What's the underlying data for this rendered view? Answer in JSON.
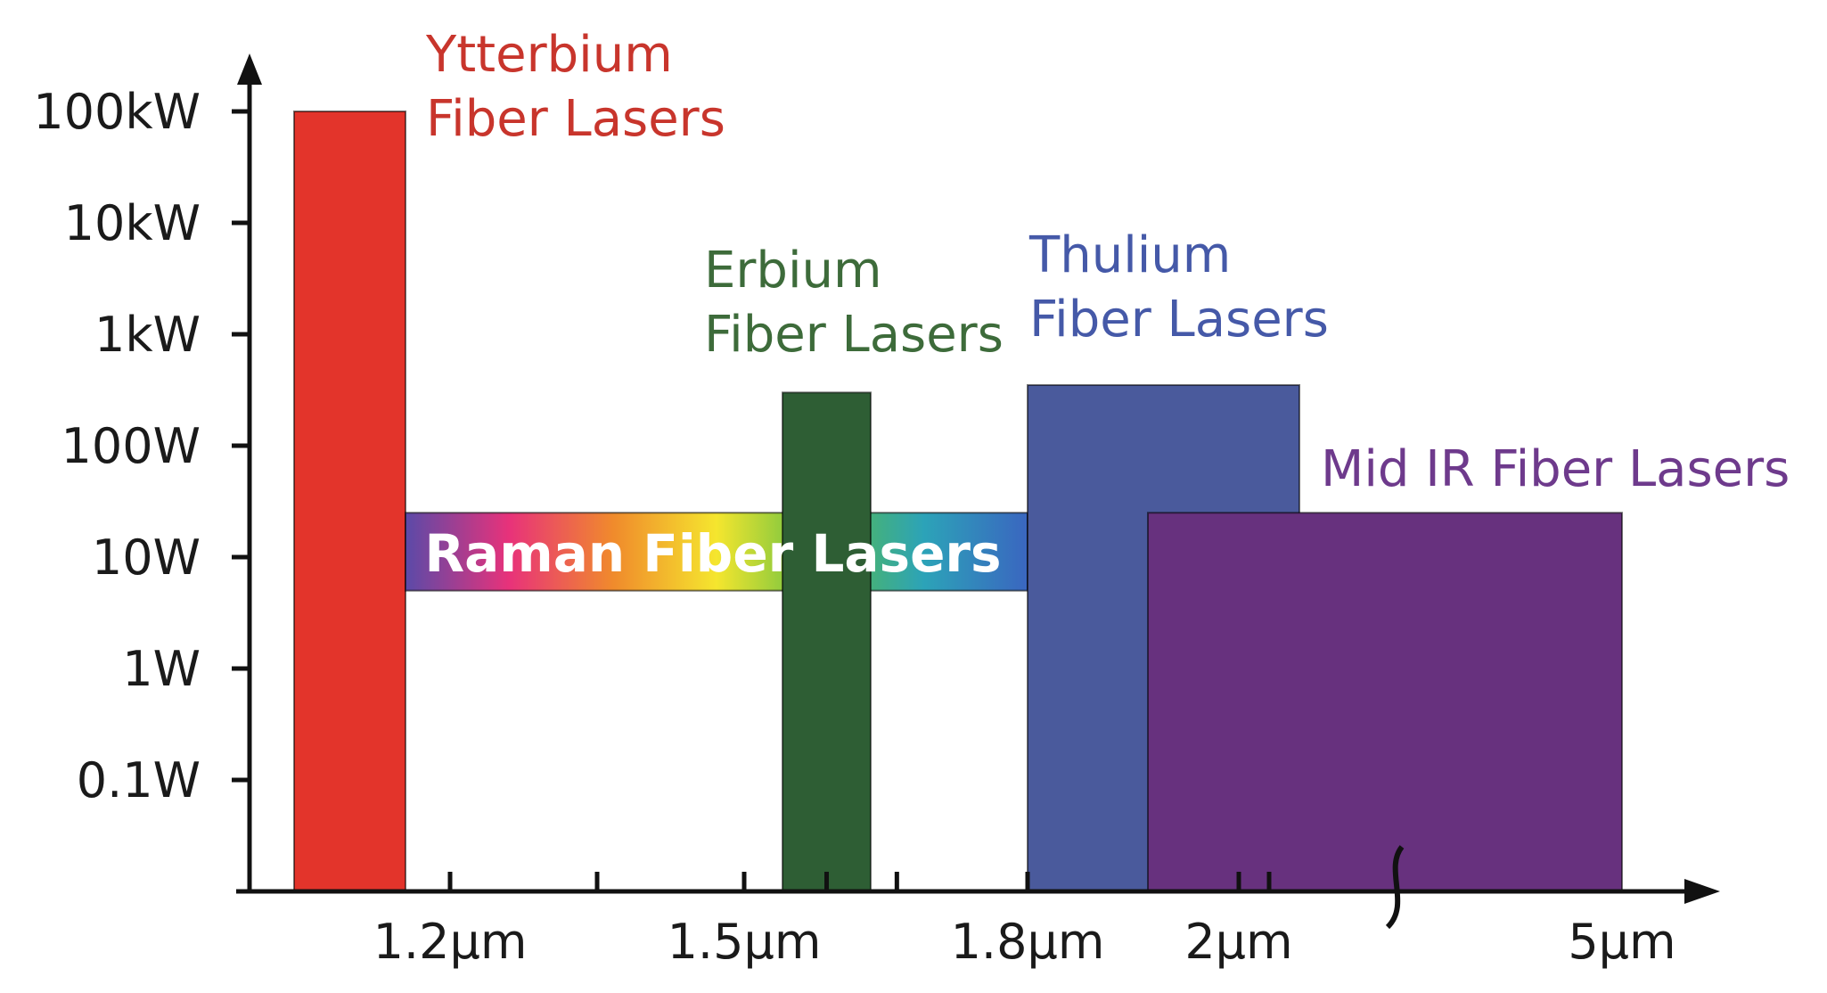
{
  "chart_data": {
    "type": "bar",
    "title": "",
    "xlabel": "",
    "ylabel": "",
    "y_scale": "log",
    "y_ticks": [
      {
        "value": 0.1,
        "label": "0.1W"
      },
      {
        "value": 1,
        "label": "1W"
      },
      {
        "value": 10,
        "label": "10W"
      },
      {
        "value": 100,
        "label": "100W"
      },
      {
        "value": 1000,
        "label": "1kW"
      },
      {
        "value": 10000,
        "label": "10kW"
      },
      {
        "value": 100000,
        "label": "100kW"
      }
    ],
    "x_ticks": [
      {
        "value": 1.2,
        "label": "1.2μm"
      },
      {
        "value": 1.5,
        "label": "1.5μm"
      },
      {
        "value": 1.8,
        "label": "1.8μm"
      },
      {
        "value": 2.0,
        "label": "2μm"
      },
      {
        "value": 5.0,
        "label": "5μm"
      }
    ],
    "x_axis_break": true,
    "series": [
      {
        "name": "Ytterbium Fiber Lasers",
        "x_start": 1.0,
        "x_end": 1.12,
        "y_min": 0.01,
        "y_max": 100000,
        "color": "#e3342b",
        "label_lines": [
          "Ytterbium",
          "Fiber Lasers"
        ]
      },
      {
        "name": "Raman Fiber Lasers",
        "x_start": 1.12,
        "x_end": 1.8,
        "y_min": 5,
        "y_max": 25,
        "color": "gradient",
        "label_lines": [
          "Raman Fiber Lasers"
        ]
      },
      {
        "name": "Erbium Fiber Lasers",
        "x_start": 1.53,
        "x_end": 1.62,
        "y_min": 0.01,
        "y_max": 300,
        "color": "#2e5e34",
        "label_lines": [
          "Erbium",
          "Fiber Lasers"
        ]
      },
      {
        "name": "Thulium Fiber Lasers",
        "x_start": 1.8,
        "x_end": 2.1,
        "y_min": 0.01,
        "y_max": 350,
        "color": "#4a5a9c",
        "label_lines": [
          "Thulium",
          "Fiber Lasers"
        ]
      },
      {
        "name": "Mid IR Fiber Lasers",
        "x_start": 1.93,
        "x_end": 5.0,
        "y_min": 0.01,
        "y_max": 25,
        "color": "#67317e",
        "label_lines": [
          "Mid IR Fiber Lasers"
        ]
      }
    ],
    "label_colors": {
      "ytterbium": "#c8352c",
      "erbium": "#3d6b3a",
      "thulium": "#4559a8",
      "midir": "#6e3a8c"
    },
    "gradient_stops": [
      "#5b4aa8",
      "#e8327a",
      "#f08a2c",
      "#f5e62e",
      "#5bbd45",
      "#2ca3b8",
      "#3a66c0"
    ],
    "axis_color": "#111111"
  }
}
